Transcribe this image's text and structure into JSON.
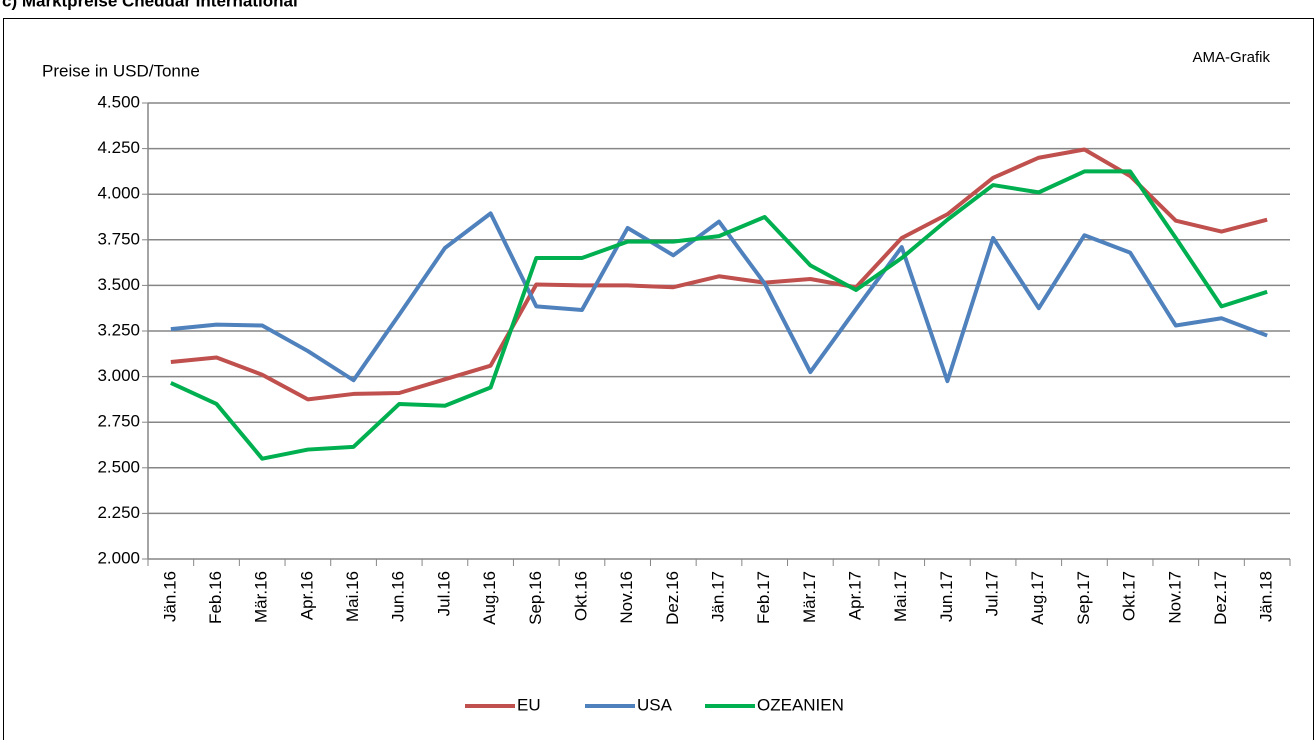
{
  "chart_data": {
    "type": "line",
    "title": "c) Marktpreise Cheddar International",
    "ylabel": "Preise in USD/Tonne",
    "annotation": "AMA-Grafik",
    "categories": [
      "Jän.16",
      "Feb.16",
      "Mär.16",
      "Apr.16",
      "Mai.16",
      "Jun.16",
      "Jul.16",
      "Aug.16",
      "Sep.16",
      "Okt.16",
      "Nov.16",
      "Dez.16",
      "Jän.17",
      "Feb.17",
      "Mär.17",
      "Apr.17",
      "Mai.17",
      "Jun.17",
      "Jul.17",
      "Aug.17",
      "Sep.17",
      "Okt.17",
      "Nov.17",
      "Dez.17",
      "Jän.18"
    ],
    "series": [
      {
        "name": "EU",
        "color": "#c0504d",
        "values": [
          3080,
          3105,
          3010,
          2875,
          2905,
          2910,
          2985,
          3060,
          3505,
          3500,
          3500,
          3490,
          3550,
          3515,
          3535,
          3490,
          3760,
          3890,
          4090,
          4200,
          4245,
          4100,
          3855,
          3795,
          3860
        ]
      },
      {
        "name": "USA",
        "color": "#4f81bd",
        "values": [
          3260,
          3285,
          3280,
          3140,
          2980,
          3340,
          3705,
          3895,
          3385,
          3365,
          3815,
          3665,
          3850,
          3510,
          3025,
          3370,
          3710,
          2975,
          3760,
          3375,
          3775,
          3680,
          3280,
          3320,
          3225
        ]
      },
      {
        "name": "OZEANIEN",
        "color": "#00b050",
        "values": [
          2965,
          2850,
          2550,
          2600,
          2615,
          2850,
          2840,
          2940,
          3650,
          3650,
          3740,
          3740,
          3770,
          3875,
          3610,
          3475,
          3650,
          3860,
          4050,
          4010,
          4125,
          4125,
          3760,
          3385,
          3465
        ]
      }
    ],
    "ylim": [
      2000,
      4500
    ],
    "yticks": [
      {
        "value": 2000,
        "label": "2.000"
      },
      {
        "value": 2250,
        "label": "2.250"
      },
      {
        "value": 2500,
        "label": "2.500"
      },
      {
        "value": 2750,
        "label": "2.750"
      },
      {
        "value": 3000,
        "label": "3.000"
      },
      {
        "value": 3250,
        "label": "3.250"
      },
      {
        "value": 3500,
        "label": "3.500"
      },
      {
        "value": 3750,
        "label": "3.750"
      },
      {
        "value": 4000,
        "label": "4.000"
      },
      {
        "value": 4250,
        "label": "4.250"
      },
      {
        "value": 4500,
        "label": "4.500"
      }
    ],
    "grid": true,
    "legend": "bottom"
  }
}
